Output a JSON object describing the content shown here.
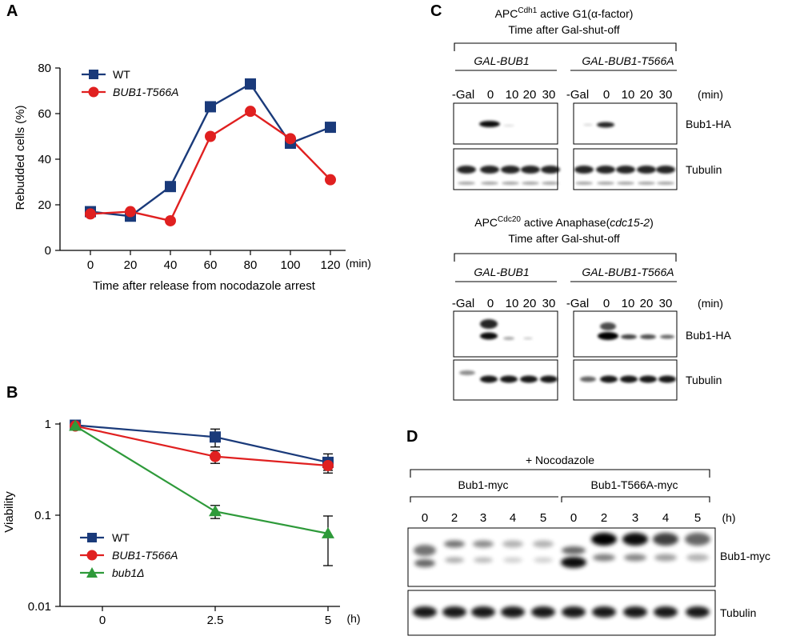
{
  "panels": {
    "A": "A",
    "B": "B",
    "C": "C",
    "D": "D"
  },
  "colors": {
    "wt": "#1a3a7a",
    "t566a": "#e02020",
    "bub1d": "#2e9a3a"
  },
  "chart_data": [
    {
      "panel": "A",
      "type": "line",
      "xlabel": "Time after release from nocodazole arrest",
      "xunit": "(min)",
      "ylabel": "Rebudded cells (%)",
      "ylim": [
        0,
        80
      ],
      "yticks": [
        "0",
        "20",
        "40",
        "60",
        "80"
      ],
      "categories": [
        "0",
        "20",
        "40",
        "60",
        "80",
        "100",
        "120"
      ],
      "x": [
        0,
        20,
        40,
        60,
        80,
        100,
        120
      ],
      "legend_position": "top-left",
      "series": [
        {
          "name": "WT",
          "italic": false,
          "marker": "square",
          "color": "#1a3a7a",
          "values": [
            17,
            15,
            28,
            63,
            73,
            47,
            54
          ]
        },
        {
          "name": "BUB1-T566A",
          "italic": true,
          "marker": "circle",
          "color": "#e02020",
          "values": [
            16,
            17,
            13,
            50,
            61,
            49,
            31
          ]
        }
      ]
    },
    {
      "panel": "B",
      "type": "line",
      "ylabel": "Viability",
      "yscale": "log",
      "ylim": [
        0.01,
        1
      ],
      "yticks": [
        "1",
        "0.1",
        "0.01"
      ],
      "xunit": "(h)",
      "xticks": [
        "0",
        "2.5",
        "5"
      ],
      "legend_position": "bottom-left",
      "series": [
        {
          "name": "WT",
          "italic": false,
          "marker": "square",
          "color": "#1a3a7a",
          "x": [
            -0.6,
            2.5,
            5
          ],
          "values": [
            0.97,
            0.72,
            0.38
          ],
          "err": [
            0,
            0.16,
            0.09
          ]
        },
        {
          "name": "BUB1-T566A",
          "italic": true,
          "marker": "circle",
          "color": "#e02020",
          "x": [
            -0.6,
            2.5,
            5
          ],
          "values": [
            0.95,
            0.44,
            0.35
          ],
          "err": [
            0,
            0.07,
            0.04
          ]
        },
        {
          "name": "bub1Δ",
          "italic": true,
          "marker": "triangle",
          "color": "#2e9a3a",
          "x": [
            -0.6,
            2.5,
            5
          ],
          "values": [
            0.95,
            0.11,
            0.063
          ],
          "err": [
            0,
            0.018,
            0.035
          ]
        }
      ]
    }
  ],
  "panelC": {
    "top": {
      "title_pre": "APC",
      "title_sup": "Cdh1",
      "title_post": " active G1(",
      "title_alpha": "α",
      "title_end": "-factor)",
      "subtitle": "Time after Gal-shut-off",
      "strain1": "GAL-BUB1",
      "strain2": "GAL-BUB1-T566A",
      "lanes": [
        "-Gal",
        "0",
        "10",
        "20",
        "30"
      ],
      "unit": "(min)",
      "band1": "Bub1-HA",
      "band2": "Tubulin"
    },
    "bottom": {
      "title_pre": "APC",
      "title_sup": "Cdc20",
      "title_post": " active Anaphase(",
      "title_italic": "cdc15-2",
      "title_end": ")",
      "subtitle": "Time after Gal-shut-off",
      "strain1": "GAL-BUB1",
      "strain2": "GAL-BUB1-T566A",
      "lanes": [
        "-Gal",
        "0",
        "10",
        "20",
        "30"
      ],
      "unit": "(min)",
      "band1": "Bub1-HA",
      "band2": "Tubulin"
    }
  },
  "panelD": {
    "title": "+ Nocodazole",
    "group1": "Bub1-myc",
    "group2": "Bub1-T566A-myc",
    "lanes": [
      "0",
      "2",
      "3",
      "4",
      "5",
      "0",
      "2",
      "3",
      "4",
      "5"
    ],
    "unit": "(h)",
    "band1": "Bub1-myc",
    "band2": "Tubulin"
  }
}
